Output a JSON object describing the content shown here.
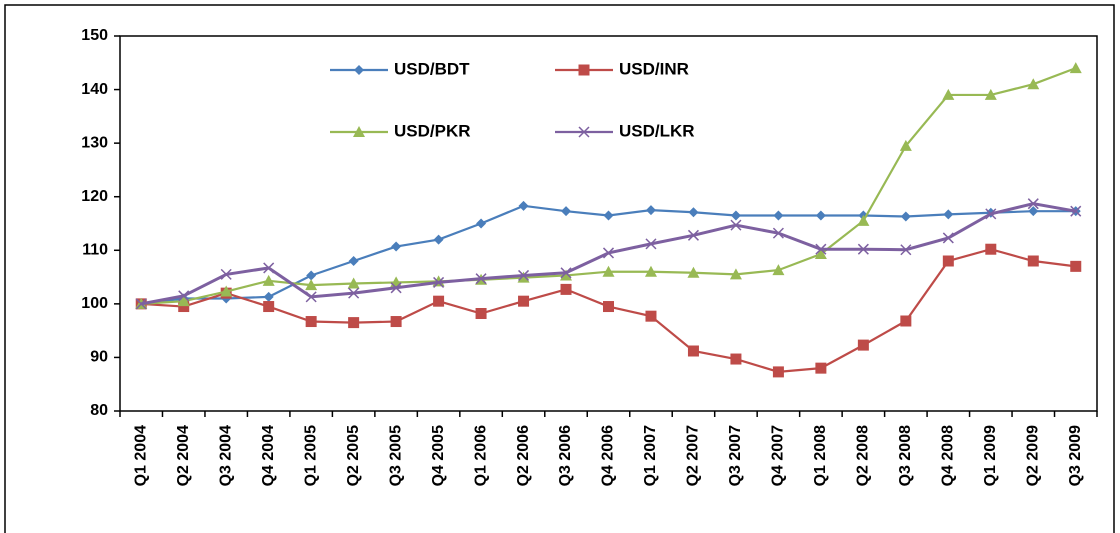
{
  "chart_data": {
    "type": "line",
    "categories": [
      "Q1 2004",
      "Q2 2004",
      "Q3 2004",
      "Q4 2004",
      "Q1 2005",
      "Q2 2005",
      "Q3 2005",
      "Q4 2005",
      "Q1 2006",
      "Q2 2006",
      "Q3 2006",
      "Q4 2006",
      "Q1 2007",
      "Q2 2007",
      "Q3 2007",
      "Q4 2007",
      "Q1 2008",
      "Q2 2008",
      "Q3 2008",
      "Q4 2008",
      "Q1 2009",
      "Q2 2009",
      "Q3 2009"
    ],
    "series": [
      {
        "name": "USD/BDT",
        "color": "#4a7ebb",
        "marker": "diamond",
        "values": [
          100,
          101,
          101,
          101.3,
          105.3,
          108,
          110.7,
          112,
          115,
          118.3,
          117.3,
          116.5,
          117.5,
          117.1,
          116.5,
          116.5,
          116.5,
          116.5,
          116.3,
          116.7,
          117,
          117.3,
          117.3
        ]
      },
      {
        "name": "USD/INR",
        "color": "#be4b48",
        "marker": "square",
        "values": [
          100,
          99.5,
          102,
          99.5,
          96.7,
          96.5,
          96.7,
          100.5,
          98.2,
          100.5,
          102.7,
          99.5,
          97.7,
          91.2,
          89.7,
          87.3,
          88,
          92.3,
          96.8,
          108,
          110.2,
          108,
          107
        ]
      },
      {
        "name": "USD/PKR",
        "color": "#98b954",
        "marker": "triangle",
        "values": [
          100,
          100.5,
          102.3,
          104.3,
          103.5,
          103.8,
          104,
          104.2,
          104.5,
          104.9,
          105.3,
          106,
          106,
          105.8,
          105.5,
          106.3,
          109.3,
          115.5,
          129.5,
          139,
          139,
          141,
          144
        ]
      },
      {
        "name": "USD/LKR",
        "color": "#7d60a0",
        "marker": "x",
        "values": [
          100,
          101.5,
          105.5,
          106.7,
          101.3,
          102,
          103,
          104,
          104.7,
          105.3,
          105.8,
          109.5,
          111.2,
          112.8,
          114.7,
          113.2,
          110.2,
          110.2,
          110.1,
          112.3,
          116.8,
          118.7,
          117.3
        ]
      }
    ],
    "ylim": [
      80,
      150
    ],
    "yticks": [
      80,
      90,
      100,
      110,
      120,
      130,
      140,
      150
    ],
    "grid": false
  }
}
